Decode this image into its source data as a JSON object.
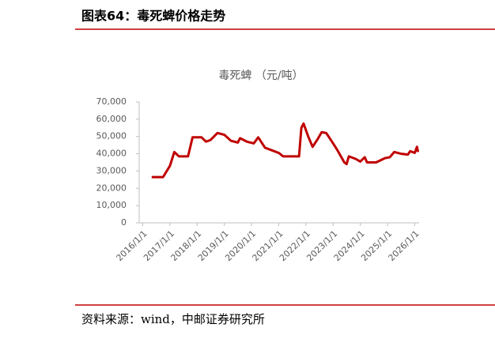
{
  "header": {
    "title": "图表64：毒死蜱价格走势"
  },
  "source": "资料来源：wind，中邮证券研究所",
  "chart_data": {
    "type": "line",
    "title": "毒死蜱 （元/吨）",
    "x": [
      "2016/5/1",
      "2016/10/1",
      "2017/1/1",
      "2017/3/1",
      "2017/5/1",
      "2017/9/1",
      "2017/11/1",
      "2018/3/1",
      "2018/5/1",
      "2018/7/1",
      "2018/10/1",
      "2019/1/1",
      "2019/4/1",
      "2019/7/1",
      "2019/8/1",
      "2019/11/1",
      "2020/2/1",
      "2020/4/1",
      "2020/7/1",
      "2020/11/1",
      "2021/1/1",
      "2021/3/1",
      "2021/6/1",
      "2021/10/1",
      "2021/11/1",
      "2021/12/1",
      "2022/2/1",
      "2022/4/1",
      "2022/6/1",
      "2022/8/1",
      "2022/10/1",
      "2023/1/1",
      "2023/3/1",
      "2023/6/1",
      "2023/7/1",
      "2023/8/1",
      "2023/11/1",
      "2024/1/1",
      "2024/3/1",
      "2024/4/1",
      "2024/8/1",
      "2024/12/1",
      "2025/2/1",
      "2025/4/1",
      "2025/7/1",
      "2025/10/1",
      "2025/11/1",
      "2026/1/1",
      "2026/2/1",
      "2026/2/15"
    ],
    "series": [
      {
        "name": "毒死蜱",
        "color": "#c00000",
        "values": [
          26500,
          26500,
          33000,
          41000,
          38500,
          38500,
          49500,
          49500,
          47000,
          48000,
          52000,
          51000,
          47500,
          46500,
          49000,
          47000,
          46000,
          49500,
          43500,
          41500,
          40500,
          38500,
          38500,
          38500,
          55000,
          57500,
          50000,
          44000,
          48000,
          52500,
          52000,
          46000,
          42000,
          35000,
          34000,
          38500,
          37000,
          35500,
          38000,
          35000,
          35000,
          37500,
          38000,
          41000,
          40000,
          39500,
          41500,
          40500,
          44000,
          41000
        ]
      }
    ],
    "xlim": [
      "2015/11/15",
      "2026/3/1"
    ],
    "xticks": [
      "2016/1/1",
      "2017/1/1",
      "2018/1/1",
      "2019/1/1",
      "2020/1/1",
      "2021/1/1",
      "2022/1/1",
      "2023/1/1",
      "2024/1/1",
      "2025/1/1",
      "2026/1/1"
    ],
    "ylim": [
      0,
      70000
    ],
    "yticks": [
      0,
      {
        "value": 10000,
        "label": "10,000"
      },
      {
        "value": 20000,
        "label": "20,000"
      },
      {
        "value": 30000,
        "label": "30,000"
      },
      {
        "value": 40000,
        "label": "40,000"
      },
      {
        "value": 50000,
        "label": "50,000"
      },
      {
        "value": 60000,
        "label": "60,000"
      },
      {
        "value": 70000,
        "label": "70,000"
      }
    ],
    "grid": false
  }
}
